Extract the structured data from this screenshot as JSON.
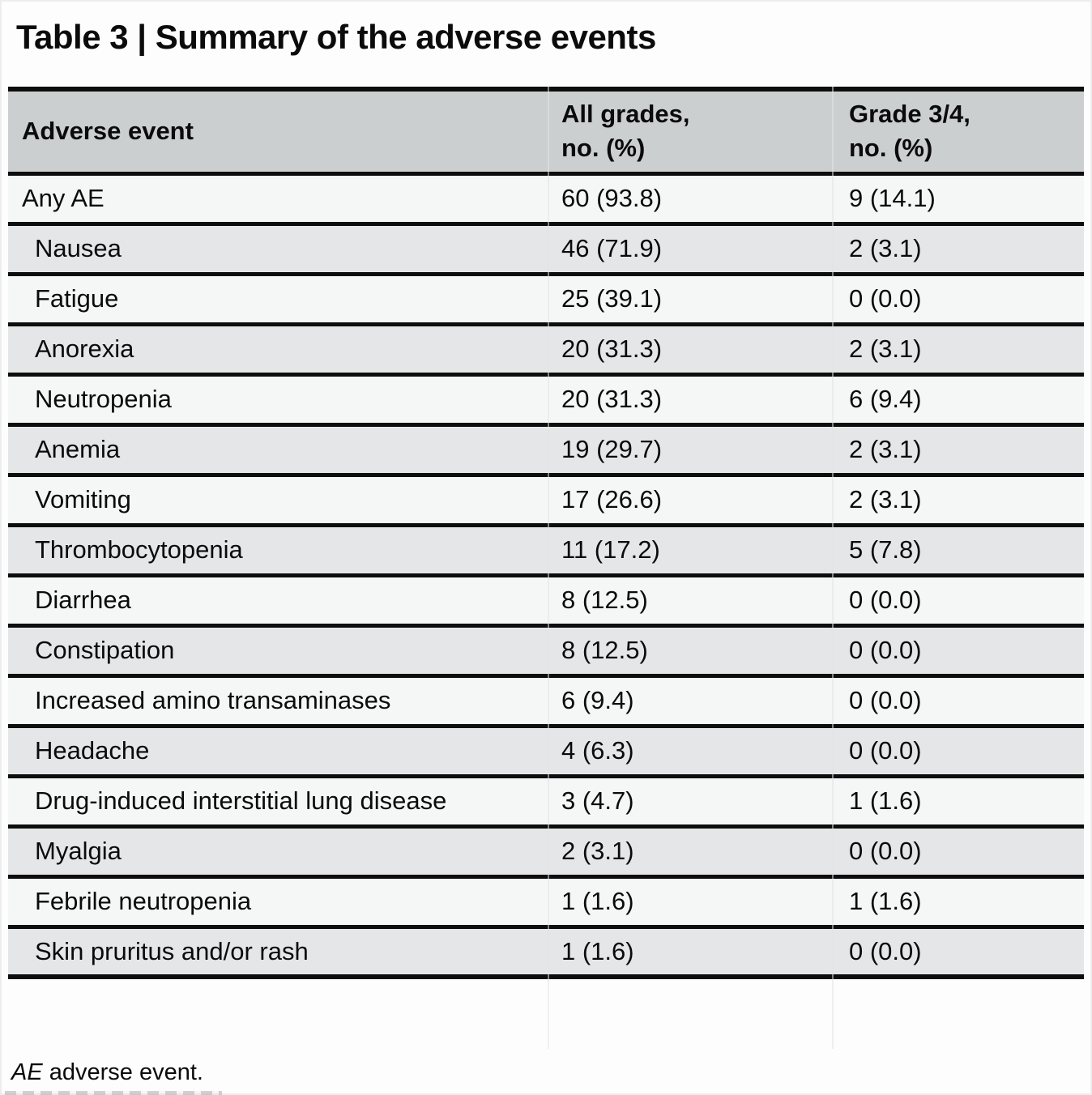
{
  "title": "Table 3 | Summary of the adverse events",
  "table": {
    "columns": [
      {
        "label": "Adverse event"
      },
      {
        "line1": "All grades,",
        "line2": "no. (%)"
      },
      {
        "line1": "Grade 3/4,",
        "line2": "no. (%)"
      }
    ],
    "rows": [
      {
        "event": "Any AE",
        "all_grades": "60 (93.8)",
        "grade_3_4": "9 (14.1)",
        "indent": false
      },
      {
        "event": "Nausea",
        "all_grades": "46 (71.9)",
        "grade_3_4": "2 (3.1)",
        "indent": true
      },
      {
        "event": "Fatigue",
        "all_grades": "25 (39.1)",
        "grade_3_4": "0 (0.0)",
        "indent": true
      },
      {
        "event": "Anorexia",
        "all_grades": "20 (31.3)",
        "grade_3_4": "2 (3.1)",
        "indent": true
      },
      {
        "event": "Neutropenia",
        "all_grades": "20 (31.3)",
        "grade_3_4": "6 (9.4)",
        "indent": true
      },
      {
        "event": "Anemia",
        "all_grades": "19 (29.7)",
        "grade_3_4": "2 (3.1)",
        "indent": true
      },
      {
        "event": "Vomiting",
        "all_grades": "17 (26.6)",
        "grade_3_4": "2 (3.1)",
        "indent": true
      },
      {
        "event": "Thrombocytopenia",
        "all_grades": "11 (17.2)",
        "grade_3_4": "5 (7.8)",
        "indent": true
      },
      {
        "event": "Diarrhea",
        "all_grades": "8 (12.5)",
        "grade_3_4": "0 (0.0)",
        "indent": true
      },
      {
        "event": "Constipation",
        "all_grades": "8 (12.5)",
        "grade_3_4": "0 (0.0)",
        "indent": true
      },
      {
        "event": "Increased amino transaminases",
        "all_grades": "6 (9.4)",
        "grade_3_4": "0 (0.0)",
        "indent": true
      },
      {
        "event": "Headache",
        "all_grades": "4 (6.3)",
        "grade_3_4": "0 (0.0)",
        "indent": true
      },
      {
        "event": "Drug-induced interstitial lung disease",
        "all_grades": "3 (4.7)",
        "grade_3_4": "1 (1.6)",
        "indent": true
      },
      {
        "event": "Myalgia",
        "all_grades": "2 (3.1)",
        "grade_3_4": "0 (0.0)",
        "indent": true
      },
      {
        "event": "Febrile neutropenia",
        "all_grades": "1 (1.6)",
        "grade_3_4": "1 (1.6)",
        "indent": true
      },
      {
        "event": "Skin pruritus and/or rash",
        "all_grades": "1 (1.6)",
        "grade_3_4": "0 (0.0)",
        "indent": true
      }
    ]
  },
  "footnote": {
    "abbreviation": "AE",
    "definition": " adverse event."
  },
  "colors": {
    "page_bg": "#fdfdfd",
    "text": "#0b0b0b",
    "rule": "#0d0d0d",
    "header_bg": "#cccfd0",
    "row_light": "#f5f6f6",
    "row_shaded": "#e5e6e7"
  }
}
